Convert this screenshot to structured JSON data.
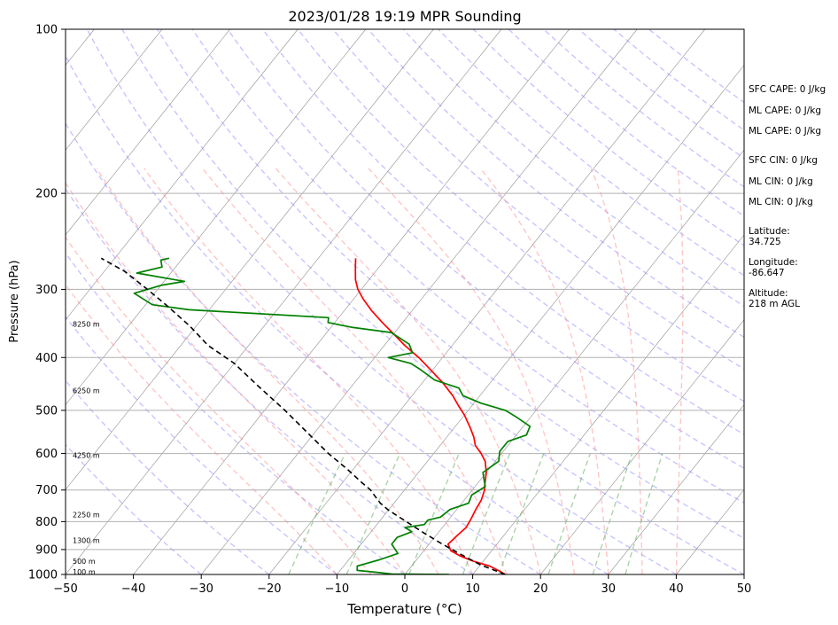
{
  "chart_data": {
    "type": "line",
    "title": "2023/01/28 19:19 MPR Sounding",
    "xlabel": "Temperature (°C)",
    "ylabel": "Pressure (hPa)",
    "xlim": [
      -50,
      50
    ],
    "ylim": [
      1000,
      100
    ],
    "y_scale": "log",
    "x_ticks": [
      -50,
      -40,
      -30,
      -20,
      -10,
      0,
      10,
      20,
      30,
      40,
      50
    ],
    "y_ticks": [
      1000,
      900,
      800,
      700,
      600,
      500,
      400,
      300,
      200,
      100
    ],
    "grid": true,
    "skew": "skew-T",
    "series": [
      {
        "key": "temperature",
        "color": "#ff0000",
        "points": [
          [
            14.8,
            1000
          ],
          [
            13.5,
            985
          ],
          [
            11.5,
            965
          ],
          [
            8.5,
            945
          ],
          [
            6,
            925
          ],
          [
            4,
            905
          ],
          [
            2.8,
            880
          ],
          [
            3.1,
            850
          ],
          [
            3.5,
            820
          ],
          [
            3.2,
            790
          ],
          [
            2.8,
            760
          ],
          [
            2.5,
            730
          ],
          [
            1.8,
            700
          ],
          [
            1.4,
            690
          ],
          [
            0,
            650
          ],
          [
            -1.5,
            620
          ],
          [
            -3,
            600
          ],
          [
            -4.8,
            580
          ],
          [
            -6,
            560
          ],
          [
            -7.5,
            540
          ],
          [
            -10,
            510
          ],
          [
            -12,
            490
          ],
          [
            -14,
            470
          ],
          [
            -17,
            445
          ],
          [
            -20.5,
            420
          ],
          [
            -23.5,
            400
          ],
          [
            -27,
            380
          ],
          [
            -30,
            362
          ],
          [
            -33,
            345
          ],
          [
            -36,
            328
          ],
          [
            -38.5,
            313
          ],
          [
            -40.5,
            300
          ],
          [
            -42,
            288
          ],
          [
            -43.5,
            273
          ],
          [
            -44.5,
            263
          ]
        ]
      },
      {
        "key": "dewpoint",
        "color": "#008000",
        "points": [
          [
            6.5,
            1000
          ],
          [
            -2,
            998
          ],
          [
            -4,
            992
          ],
          [
            -7.5,
            983
          ],
          [
            -8,
            965
          ],
          [
            -5.5,
            940
          ],
          [
            -3.5,
            915
          ],
          [
            -5.5,
            880
          ],
          [
            -5.5,
            855
          ],
          [
            -4,
            835
          ],
          [
            -5.5,
            820
          ],
          [
            -3,
            810
          ],
          [
            -3,
            795
          ],
          [
            -1.5,
            785
          ],
          [
            -1,
            760
          ],
          [
            1,
            740
          ],
          [
            0.5,
            715
          ],
          [
            1.5,
            690
          ],
          [
            0.5,
            670
          ],
          [
            -0.5,
            650
          ],
          [
            0.5,
            620
          ],
          [
            -0.5,
            595
          ],
          [
            -0.5,
            570
          ],
          [
            1.5,
            555
          ],
          [
            1,
            535
          ],
          [
            -2,
            515
          ],
          [
            -4.5,
            500
          ],
          [
            -9,
            485
          ],
          [
            -12.5,
            470
          ],
          [
            -14,
            455
          ],
          [
            -18.5,
            440
          ],
          [
            -22,
            420
          ],
          [
            -24,
            410
          ],
          [
            -28,
            400
          ],
          [
            -25,
            392
          ],
          [
            -26.5,
            378
          ],
          [
            -30.5,
            360
          ],
          [
            -37,
            352
          ],
          [
            -41,
            345
          ],
          [
            -41.5,
            338
          ],
          [
            -53,
            332
          ],
          [
            -63,
            327
          ],
          [
            -69,
            320
          ],
          [
            -73,
            305
          ],
          [
            -70,
            295
          ],
          [
            -67,
            290
          ],
          [
            -75,
            280
          ],
          [
            -72,
            273
          ],
          [
            -73,
            265
          ],
          [
            -72,
            263
          ]
        ]
      },
      {
        "key": "parcel",
        "color": "#000000",
        "dashed": true,
        "points": [
          [
            14.8,
            1000
          ],
          [
            10,
            960
          ],
          [
            6,
            920
          ],
          [
            2,
            880
          ],
          [
            -2,
            840
          ],
          [
            -6,
            800
          ],
          [
            -10,
            762
          ],
          [
            -12,
            740
          ],
          [
            -13.5,
            720
          ],
          [
            -15,
            700
          ],
          [
            -17,
            680
          ],
          [
            -21,
            640
          ],
          [
            -25.5,
            600
          ],
          [
            -31,
            550
          ],
          [
            -37,
            500
          ],
          [
            -44,
            450
          ],
          [
            -50,
            410
          ],
          [
            -56,
            380
          ],
          [
            -61,
            350
          ],
          [
            -67,
            320
          ],
          [
            -72,
            298
          ],
          [
            -77,
            278
          ],
          [
            -82,
            263
          ]
        ]
      }
    ],
    "background_lines": [
      {
        "kind": "dry_adiabats",
        "color": "#8080ff"
      },
      {
        "kind": "moist_adiabats",
        "color": "#ff8080"
      },
      {
        "kind": "mixing_ratio",
        "color": "#40a040"
      },
      {
        "kind": "isotherms",
        "color": "#808080"
      }
    ],
    "height_labels": [
      {
        "label": "100 m",
        "pressure": 988
      },
      {
        "label": "500 m",
        "pressure": 945
      },
      {
        "label": "1300 m",
        "pressure": 866
      },
      {
        "label": "2250 m",
        "pressure": 776
      },
      {
        "label": "4250 m",
        "pressure": 604
      },
      {
        "label": "6250 m",
        "pressure": 460
      },
      {
        "label": "8250 m",
        "pressure": 347
      }
    ]
  },
  "indices": [
    {
      "text": "SFC CAPE: 0 J/kg"
    },
    {
      "text": "ML CAPE: 0 J/kg"
    },
    {
      "text": "ML CAPE: 0 J/kg"
    },
    {
      "text": "SFC CIN: 0 J/kg"
    },
    {
      "text": "ML CIN: 0 J/kg"
    },
    {
      "text": "ML CIN: 0 J/kg"
    }
  ],
  "station": {
    "lat_label": "Latitude:",
    "lat_value": "34.725",
    "lon_label": "Longitude:",
    "lon_value": "-86.647",
    "alt_label": "Altitude:",
    "alt_value": "218 m AGL"
  }
}
